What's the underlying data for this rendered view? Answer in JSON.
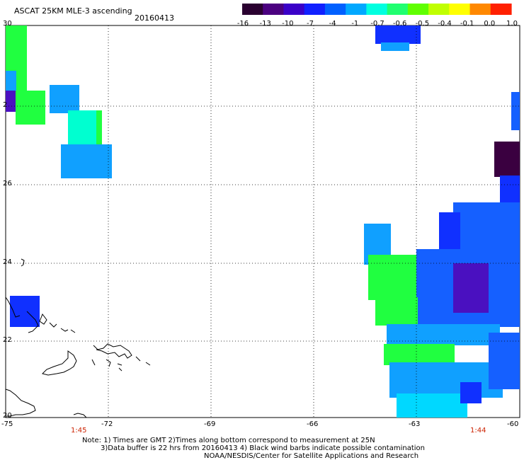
{
  "header": {
    "title": "ASCAT 25KM MLE-3 ascending",
    "date": "20160413"
  },
  "colorbar": {
    "labels": [
      "-16",
      "-13",
      "-10",
      "-7",
      "-4",
      "-1",
      "-0.7",
      "-0.6",
      "-0.5",
      "-0.4",
      "-0.1",
      "0.0",
      "1.0"
    ],
    "colors": [
      "#2a0030",
      "#4b0080",
      "#3a00c8",
      "#1020ff",
      "#0060ff",
      "#00a8ff",
      "#00ffe0",
      "#20ff70",
      "#60ff00",
      "#c0ff00",
      "#ffff00",
      "#ff8800",
      "#ff2000"
    ]
  },
  "axes": {
    "lon_labels": [
      "-75",
      "-72",
      "-69",
      "-66",
      "-63",
      "-60"
    ],
    "lat_labels": [
      "30",
      "26",
      "24",
      "22",
      "20"
    ],
    "lat_label_partial": "2"
  },
  "times": {
    "left": "1:45",
    "right": "1:44"
  },
  "footer": {
    "line1": "Note: 1) Times are GMT 2)Times along bottom correspond to measurement at 25N",
    "line2": "3)Data buffer is 22 hrs from 20160413 4) Black wind barbs indicate possible contamination",
    "line3": "NOAA/NESDIS/Center for Satellite Applications and Research"
  },
  "palette": {
    "dark_purple": "#3a0040",
    "purple": "#4a10c0",
    "blue": "#1030ff",
    "mid_blue": "#1560ff",
    "light_blue": "#10a0ff",
    "cyan": "#00d8ff",
    "aqua": "#00ffd0",
    "green": "#20ff40",
    "lime": "#60ff20"
  }
}
